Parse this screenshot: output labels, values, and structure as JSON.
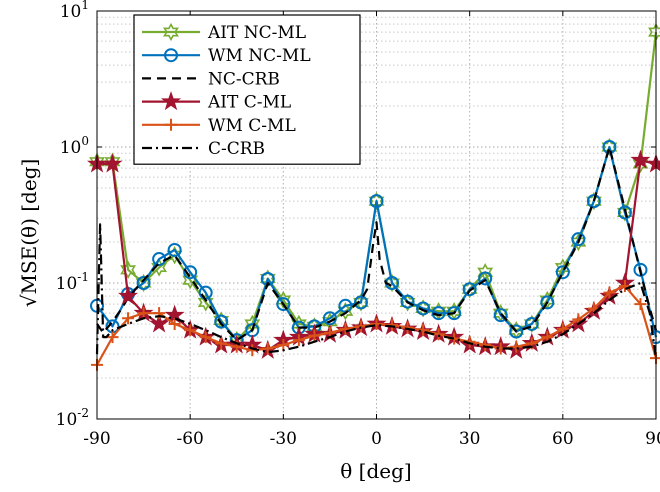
{
  "chart_data": {
    "type": "line",
    "xlabel": "θ [deg]",
    "ylabel": "√MSE(θ) [deg]",
    "x_ticks": [
      -90,
      -60,
      -30,
      0,
      30,
      60,
      90
    ],
    "x_tick_labels": [
      "-90",
      "-60",
      "-30",
      "0",
      "30",
      "60",
      "90"
    ],
    "y_ticks": [
      0.01,
      0.1,
      1,
      10
    ],
    "y_tick_labels": [
      {
        "base": "10",
        "exp": "-2"
      },
      {
        "base": "10",
        "exp": "-1"
      },
      {
        "base": "10",
        "exp": "0"
      },
      {
        "base": "10",
        "exp": "1"
      }
    ],
    "xlim": [
      -90,
      90
    ],
    "ylim": [
      0.01,
      10
    ],
    "yscale": "log",
    "grid": true,
    "minor_grid": true,
    "legend_position": "top-left",
    "series": [
      {
        "name": "AIT NC-ML",
        "color": "#77ac30",
        "line": "solid",
        "marker": "hexagram",
        "x": [
          -90,
          -85,
          -80,
          -75,
          -70,
          -65,
          -60,
          -55,
          -50,
          -45,
          -40,
          -35,
          -30,
          -25,
          -20,
          -15,
          -10,
          -5,
          0,
          5,
          10,
          15,
          20,
          25,
          30,
          35,
          40,
          45,
          50,
          55,
          60,
          65,
          70,
          75,
          80,
          85,
          90
        ],
        "y": [
          0.78,
          0.78,
          0.125,
          0.1,
          0.13,
          0.16,
          0.105,
          0.072,
          0.053,
          0.038,
          0.05,
          0.108,
          0.075,
          0.05,
          0.048,
          0.052,
          0.062,
          0.072,
          0.4,
          0.1,
          0.072,
          0.065,
          0.062,
          0.062,
          0.09,
          0.12,
          0.06,
          0.045,
          0.05,
          0.075,
          0.13,
          0.2,
          0.4,
          1.0,
          0.33,
          0.75,
          7.0
        ]
      },
      {
        "name": "WM NC-ML",
        "color": "#0072bd",
        "line": "solid",
        "marker": "circle",
        "x": [
          -90,
          -85,
          -80,
          -75,
          -70,
          -65,
          -60,
          -55,
          -50,
          -45,
          -40,
          -35,
          -30,
          -25,
          -20,
          -15,
          -10,
          -5,
          0,
          5,
          10,
          15,
          20,
          25,
          30,
          35,
          40,
          45,
          50,
          55,
          60,
          65,
          70,
          75,
          80,
          85,
          90
        ],
        "y": [
          0.068,
          0.048,
          0.083,
          0.1,
          0.15,
          0.175,
          0.12,
          0.085,
          0.052,
          0.038,
          0.045,
          0.107,
          0.07,
          0.047,
          0.048,
          0.055,
          0.068,
          0.072,
          0.4,
          0.1,
          0.073,
          0.065,
          0.06,
          0.06,
          0.09,
          0.108,
          0.058,
          0.044,
          0.05,
          0.072,
          0.12,
          0.21,
          0.4,
          1.0,
          0.33,
          0.125,
          0.04
        ]
      },
      {
        "name": "NC-CRB",
        "color": "#000000",
        "line": "dashed",
        "marker": "none",
        "x": [
          -90,
          -88,
          -85,
          -82,
          -80,
          -75,
          -70,
          -65,
          -60,
          -55,
          -50,
          -45,
          -40,
          -35,
          -30,
          -25,
          -20,
          -15,
          -10,
          -5,
          -3,
          -1,
          0,
          1,
          3,
          5,
          10,
          15,
          20,
          25,
          30,
          35,
          40,
          45,
          50,
          55,
          60,
          65,
          70,
          75,
          80,
          85,
          88,
          90
        ],
        "y": [
          0.05,
          0.043,
          0.052,
          0.065,
          0.078,
          0.105,
          0.14,
          0.16,
          0.11,
          0.075,
          0.05,
          0.038,
          0.045,
          0.1,
          0.07,
          0.047,
          0.047,
          0.052,
          0.06,
          0.075,
          0.09,
          0.2,
          0.28,
          0.15,
          0.1,
          0.095,
          0.072,
          0.063,
          0.058,
          0.06,
          0.088,
          0.105,
          0.06,
          0.044,
          0.048,
          0.072,
          0.12,
          0.2,
          0.4,
          1.0,
          0.35,
          0.12,
          0.065,
          0.045
        ]
      },
      {
        "name": "AIT C-ML",
        "color": "#a2142f",
        "line": "solid",
        "marker": "pentagram",
        "x": [
          -90,
          -85,
          -80,
          -75,
          -70,
          -65,
          -60,
          -55,
          -50,
          -45,
          -40,
          -35,
          -30,
          -25,
          -20,
          -15,
          -10,
          -5,
          0,
          5,
          10,
          15,
          20,
          25,
          30,
          35,
          40,
          45,
          50,
          55,
          60,
          65,
          70,
          75,
          80,
          85,
          90
        ],
        "y": [
          0.75,
          0.75,
          0.08,
          0.06,
          0.05,
          0.058,
          0.045,
          0.04,
          0.035,
          0.035,
          0.035,
          0.032,
          0.038,
          0.04,
          0.042,
          0.042,
          0.045,
          0.047,
          0.05,
          0.048,
          0.046,
          0.044,
          0.042,
          0.04,
          0.035,
          0.034,
          0.034,
          0.032,
          0.036,
          0.04,
          0.045,
          0.05,
          0.062,
          0.08,
          0.1,
          0.8,
          0.75
        ]
      },
      {
        "name": "WM C-ML",
        "color": "#d95319",
        "line": "solid",
        "marker": "plus",
        "x": [
          -90,
          -85,
          -80,
          -75,
          -70,
          -65,
          -60,
          -55,
          -50,
          -45,
          -40,
          -35,
          -30,
          -25,
          -20,
          -15,
          -10,
          -5,
          0,
          5,
          10,
          15,
          20,
          25,
          30,
          35,
          40,
          45,
          50,
          55,
          60,
          65,
          70,
          75,
          80,
          85,
          90
        ],
        "y": [
          0.025,
          0.04,
          0.055,
          0.06,
          0.06,
          0.05,
          0.045,
          0.04,
          0.036,
          0.034,
          0.032,
          0.033,
          0.035,
          0.038,
          0.041,
          0.043,
          0.046,
          0.048,
          0.05,
          0.049,
          0.047,
          0.045,
          0.042,
          0.039,
          0.037,
          0.035,
          0.033,
          0.034,
          0.036,
          0.04,
          0.046,
          0.054,
          0.065,
          0.085,
          0.095,
          0.07,
          0.028
        ]
      },
      {
        "name": "C-CRB",
        "color": "#000000",
        "line": "dashdot",
        "marker": "none",
        "x": [
          -90,
          -89,
          -88,
          -87,
          -85,
          -80,
          -75,
          -70,
          -65,
          -60,
          -55,
          -50,
          -45,
          -40,
          -35,
          -30,
          -25,
          -20,
          -15,
          -10,
          -5,
          0,
          5,
          10,
          15,
          20,
          25,
          30,
          35,
          40,
          45,
          50,
          55,
          60,
          65,
          70,
          75,
          80,
          85,
          88,
          90
        ],
        "y": [
          0.03,
          0.27,
          0.04,
          0.04,
          0.045,
          0.05,
          0.055,
          0.057,
          0.055,
          0.05,
          0.045,
          0.04,
          0.036,
          0.033,
          0.031,
          0.032,
          0.034,
          0.037,
          0.04,
          0.044,
          0.047,
          0.049,
          0.048,
          0.046,
          0.044,
          0.041,
          0.039,
          0.036,
          0.034,
          0.033,
          0.033,
          0.034,
          0.037,
          0.042,
          0.05,
          0.06,
          0.075,
          0.09,
          0.1,
          0.06,
          0.028
        ]
      }
    ]
  }
}
